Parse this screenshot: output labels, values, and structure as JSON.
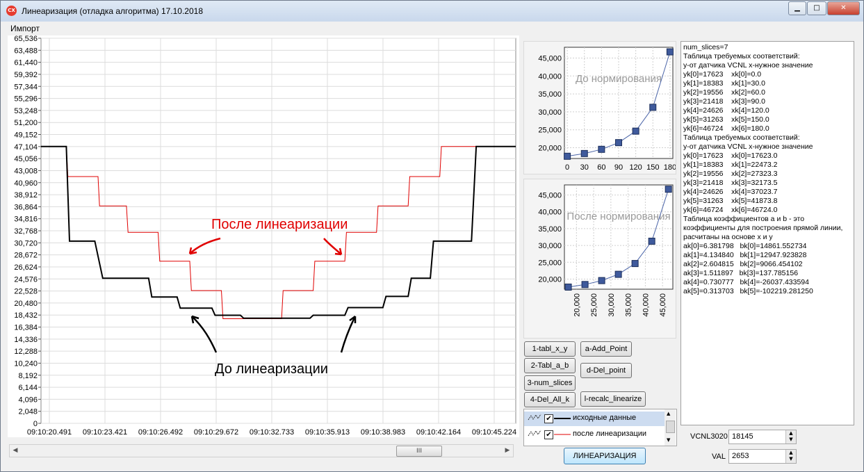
{
  "window": {
    "title": "Линеаризация (отладка алгоритма) 17.10.2018",
    "icon_text": "CX",
    "min_label": "▁",
    "max_label": "□",
    "close_label": "✕"
  },
  "menu": {
    "items": [
      {
        "label": "Импорт"
      }
    ]
  },
  "main_chart": {
    "y_ticks": [
      "0",
      "2,048",
      "4,096",
      "6,144",
      "8,192",
      "10,240",
      "12,288",
      "14,336",
      "16,384",
      "18,432",
      "20,480",
      "22,528",
      "24,576",
      "26,624",
      "28,672",
      "30,720",
      "32,768",
      "34,816",
      "36,864",
      "38,912",
      "40,960",
      "43,008",
      "45,056",
      "47,104",
      "49,152",
      "51,200",
      "53,248",
      "55,296",
      "57,344",
      "59,392",
      "61,440",
      "63,488",
      "65,536"
    ],
    "x_ticks": [
      "09:10:20.491",
      "09:10:23.421",
      "09:10:26.492",
      "09:10:29.672",
      "09:10:32.733",
      "09:10:35.913",
      "09:10:38.983",
      "09:10:42.164",
      "09:10:45.224"
    ],
    "annotation_after": "После линеаризации",
    "annotation_before": "До линеаризации",
    "scroll_thumb": "III",
    "colors": {
      "raw": "#000000",
      "linearized": "#e00000",
      "grid": "#d8d8d8",
      "annotation_after": "#e00000"
    }
  },
  "chart_data": [
    {
      "type": "line",
      "ylim": [
        0,
        65536
      ],
      "x": [
        "09:10:20.491",
        "09:10:23.421",
        "09:10:26.492",
        "09:10:29.672",
        "09:10:32.733",
        "09:10:35.913",
        "09:10:38.983",
        "09:10:42.164",
        "09:10:45.224"
      ],
      "series": [
        {
          "name": "исходные данные",
          "steps": [
            [
              0,
              47104
            ],
            [
              0.8,
              47104
            ],
            [
              0.9,
              31000
            ],
            [
              1.7,
              31000
            ],
            [
              1.95,
              24700
            ],
            [
              3.4,
              24700
            ],
            [
              3.5,
              21500
            ],
            [
              4.3,
              21500
            ],
            [
              4.4,
              19600
            ],
            [
              5.4,
              19600
            ],
            [
              5.5,
              18400
            ],
            [
              6.3,
              18400
            ],
            [
              6.4,
              17900
            ],
            [
              8.5,
              17900
            ],
            [
              8.6,
              18400
            ],
            [
              9.6,
              18400
            ],
            [
              9.7,
              19700
            ],
            [
              10.8,
              19700
            ],
            [
              10.9,
              21600
            ],
            [
              11.6,
              21600
            ],
            [
              11.7,
              24700
            ],
            [
              12.3,
              24700
            ],
            [
              12.4,
              31000
            ],
            [
              13.6,
              31000
            ],
            [
              13.75,
              47104
            ],
            [
              15,
              47104
            ]
          ]
        },
        {
          "name": "после линеаризации",
          "steps": [
            [
              0,
              47104
            ],
            [
              0.8,
              47104
            ],
            [
              0.85,
              42000
            ],
            [
              1.8,
              42000
            ],
            [
              1.85,
              37000
            ],
            [
              2.7,
              37000
            ],
            [
              2.75,
              32500
            ],
            [
              3.7,
              32500
            ],
            [
              3.75,
              27600
            ],
            [
              4.7,
              27600
            ],
            [
              4.75,
              22600
            ],
            [
              5.7,
              22600
            ],
            [
              5.75,
              17800
            ],
            [
              7.6,
              17800
            ],
            [
              7.65,
              22600
            ],
            [
              8.6,
              22600
            ],
            [
              8.65,
              27600
            ],
            [
              9.6,
              27600
            ],
            [
              9.65,
              32500
            ],
            [
              10.6,
              32500
            ],
            [
              10.65,
              37000
            ],
            [
              11.6,
              37000
            ],
            [
              11.65,
              42000
            ],
            [
              12.6,
              42000
            ],
            [
              12.65,
              47104
            ],
            [
              15,
              47104
            ]
          ]
        }
      ]
    },
    {
      "type": "scatter",
      "title": "До нормирования",
      "x_ticks": [
        "0",
        "30",
        "60",
        "90",
        "120",
        "150",
        "180"
      ],
      "y_ticks": [
        "20,000",
        "25,000",
        "30,000",
        "35,000",
        "40,000",
        "45,000"
      ],
      "xlim": [
        -5,
        185
      ],
      "ylim": [
        17000,
        48000
      ],
      "x": [
        0,
        30,
        60,
        90,
        120,
        150,
        180
      ],
      "y": [
        17623,
        18383,
        19556,
        21418,
        24626,
        31263,
        46724
      ]
    },
    {
      "type": "scatter",
      "title": "После нормирования",
      "x_ticks": [
        "20,000",
        "25,000",
        "30,000",
        "35,000",
        "40,000",
        "45,000"
      ],
      "y_ticks": [
        "20,000",
        "25,000",
        "30,000",
        "35,000",
        "40,000",
        "45,000"
      ],
      "xlim": [
        16500,
        48000
      ],
      "ylim": [
        17000,
        48000
      ],
      "x": [
        17623,
        22473.2,
        27323.3,
        32173.5,
        37023.7,
        41873.8,
        46724.0
      ],
      "y": [
        17623,
        18383,
        19556,
        21418,
        24626,
        31263,
        46724
      ]
    }
  ],
  "buttons": {
    "tabl_xy": "1-tabl_x_y",
    "add_point": "a-Add_Point",
    "tabl_ab": "2-Tabl_a_b",
    "del_point": "d-Del_point",
    "num_slices": "3-num_slices",
    "del_all": "4-Del_All_k",
    "recalc": "l-recalc_linearize",
    "linearize": "ЛИНЕАРИЗАЦИЯ"
  },
  "legend": {
    "items": [
      {
        "label": "исходные данные",
        "checked": "✔"
      },
      {
        "label": "после линеаризации",
        "checked": "✔"
      }
    ]
  },
  "text_panel": {
    "lines": [
      "num_slices=7",
      "Таблица требуемых соответствий:",
      "у-от датчика VCNL x-нужное значение",
      "yk[0]=17623    xk[0]=0.0",
      "yk[1]=18383    xk[1]=30.0",
      "yk[2]=19556    xk[2]=60.0",
      "yk[3]=21418    xk[3]=90.0",
      "yk[4]=24626    xk[4]=120.0",
      "yk[5]=31263    xk[5]=150.0",
      "yk[6]=46724    xk[6]=180.0",
      "Таблица требуемых соответствий:",
      "у-от датчика VCNL x-нужное значение",
      "yk[0]=17623    xk[0]=17623.0",
      "yk[1]=18383    xk[1]=22473.2",
      "yk[2]=19556    xk[2]=27323.3",
      "yk[3]=21418    xk[3]=32173.5",
      "yk[4]=24626    xk[4]=37023.7",
      "yk[5]=31263    xk[5]=41873.8",
      "yk[6]=46724    xk[6]=46724.0",
      "Таблица коэффициентов a и b - это",
      "коэффициенты для построения прямой линии,",
      "расчитаны на основе x и y",
      "ak[0]=6.381798   bk[0]=14861.552734",
      "ak[1]=4.134840   bk[1]=12947.923828",
      "ak[2]=2.604815   bk[2]=9066.454102",
      "ak[3]=1.511897   bk[3]=137.785156",
      "ak[4]=0.730777   bk[4]=-26037.433594",
      "ak[5]=0.313703   bk[5]=-102219.281250"
    ]
  },
  "fields": {
    "vcnl_label": "VCNL3020",
    "vcnl_value": "18145",
    "val_label": "VAL",
    "val_value": "2653"
  }
}
